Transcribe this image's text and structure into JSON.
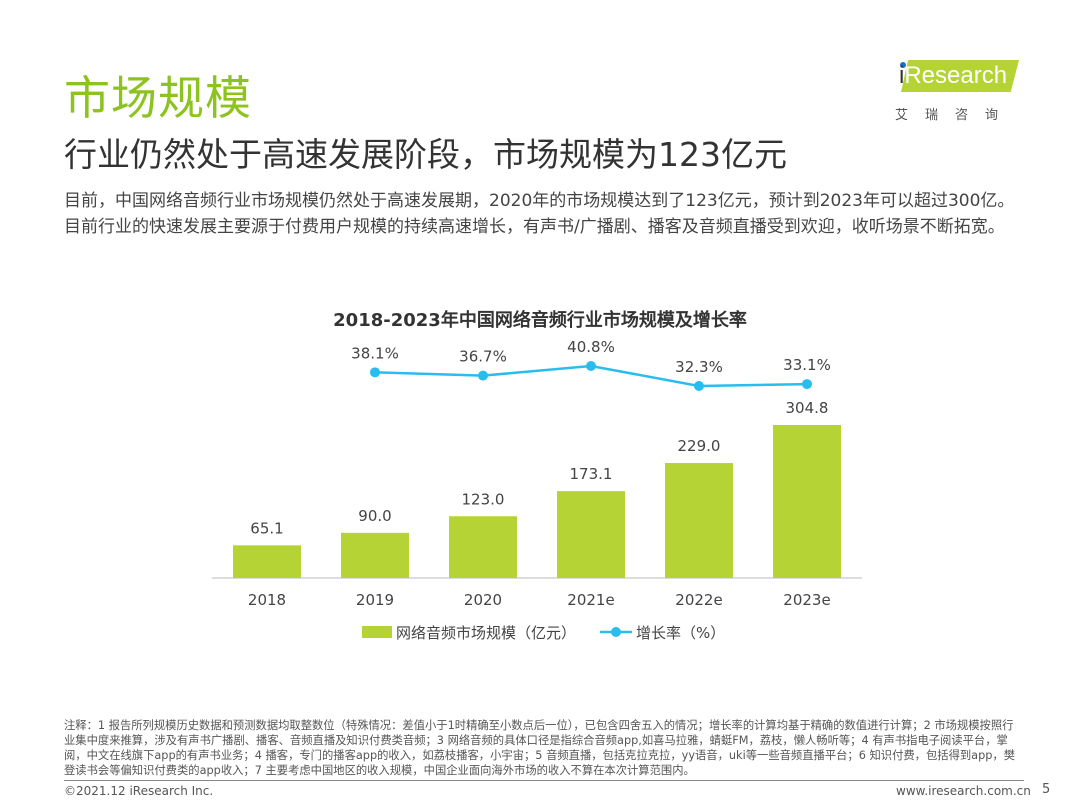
{
  "header": {
    "title": "市场规模",
    "subtitle": "行业仍然处于高速发展阶段，市场规模为123亿元"
  },
  "logo": {
    "brand_i": "i",
    "brand_rest": "Research",
    "cn": "艾瑞咨询"
  },
  "body_text": "目前，中国网络音频行业市场规模仍然处于高速发展期，2020年的市场规模达到了123亿元，预计到2023年可以超过300亿。目前行业的快速发展主要源于付费用户规模的持续高速增长，有声书/广播剧、播客及音频直播受到欢迎，收听场景不断拓宽。",
  "chart_data": {
    "type": "bar",
    "title": "2018-2023年中国网络音频行业市场规模及增长率",
    "categories": [
      "2018",
      "2019",
      "2020",
      "2021e",
      "2022e",
      "2023e"
    ],
    "series": [
      {
        "name": "网络音频市场规模（亿元）",
        "type": "bar",
        "values": [
          65.1,
          90.0,
          123.0,
          173.1,
          229.0,
          304.8
        ],
        "labels": [
          "65.1",
          "90.0",
          "123.0",
          "173.1",
          "229.0",
          "304.8"
        ],
        "color": "#b5d334"
      },
      {
        "name": "增长率（%）",
        "type": "line",
        "x": [
          "2019",
          "2020",
          "2021e",
          "2022e",
          "2023e"
        ],
        "values": [
          38.1,
          36.7,
          40.8,
          32.3,
          33.1
        ],
        "labels": [
          "38.1%",
          "36.7%",
          "40.8%",
          "32.3%",
          "33.1%"
        ],
        "color": "#29bdef"
      }
    ],
    "legend_position": "bottom",
    "grid": false
  },
  "notes": "注释：1 报告所列规模历史数据和预测数据均取整数位（特殊情况：差值小于1时精确至小数点后一位），已包含四舍五入的情况；增长率的计算均基于精确的数值进行计算；2 市场规模按照行业集中度来推算，涉及有声书广播剧、播客、音频直播及知识付费类音频；3 网络音频的具体口径是指综合音频app,如喜马拉雅，蜻蜓FM，荔枝，懒人畅听等；4 有声书指电子阅读平台，掌阅，中文在线旗下app的有声书业务；4 播客，专门的播客app的收入，如荔枝播客，小宇宙；5 音频直播，包括克拉克拉，yy语音，uki等一些音频直播平台；6 知识付费，包括得到app，樊登读书会等偏知识付费类的app收入；7 主要考虑中国地区的收入规模，中国企业面向海外市场的收入不算在本次计算范围内。",
  "footer": {
    "copyright": "©2021.12 iResearch Inc.",
    "website": "www.iresearch.com.cn",
    "page": "5"
  }
}
